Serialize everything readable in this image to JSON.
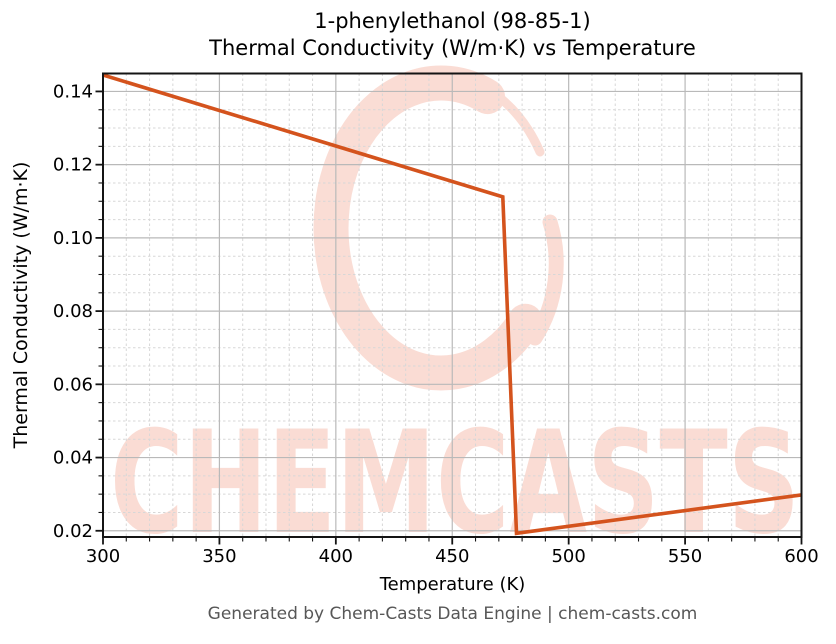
{
  "title": {
    "line1": "1-phenylethanol (98-85-1)",
    "line2": "Thermal Conductivity (W/m·K) vs Temperature"
  },
  "footer": {
    "text": "Generated by Chem-Casts Data Engine | chem-casts.com"
  },
  "watermark": {
    "text": "CHEMCASTS",
    "color": "#e8542c",
    "opacity": 0.2
  },
  "colors": {
    "line": "#d4531d",
    "major_grid": "#b9b9b9",
    "minor_grid": "#d7d7d7",
    "spine": "#141414",
    "text": "#000000",
    "footer_text": "#575757",
    "background": "#ffffff"
  },
  "chart_data": {
    "type": "line",
    "title": "1-phenylethanol (98-85-1)\nThermal Conductivity (W/m·K) vs Temperature",
    "xlabel": "Temperature (K)",
    "ylabel": "Thermal Conductivity (W/m·K)",
    "xlim": [
      300,
      600
    ],
    "ylim": [
      0.0183,
      0.1449
    ],
    "grid": {
      "major": "solid",
      "minor": "dashed"
    },
    "legend": "none",
    "xticks": {
      "values": [
        300,
        350,
        400,
        450,
        500,
        550,
        600
      ],
      "labels": [
        "300",
        "350",
        "400",
        "450",
        "500",
        "550",
        "600"
      ],
      "minor_step": 10
    },
    "yticks": {
      "values": [
        0.02,
        0.04,
        0.06,
        0.08,
        0.1,
        0.12,
        0.14
      ],
      "labels": [
        "0.02",
        "0.04",
        "0.06",
        "0.08",
        "0.10",
        "0.12",
        "0.14"
      ],
      "minor_step": 0.005
    },
    "series": [
      {
        "name": "thermal-conductivity",
        "color": "#d4531d",
        "points": [
          [
            300,
            0.1445
          ],
          [
            471.7,
            0.1112
          ],
          [
            477.6,
            0.0193
          ],
          [
            600,
            0.0298
          ]
        ]
      }
    ]
  }
}
